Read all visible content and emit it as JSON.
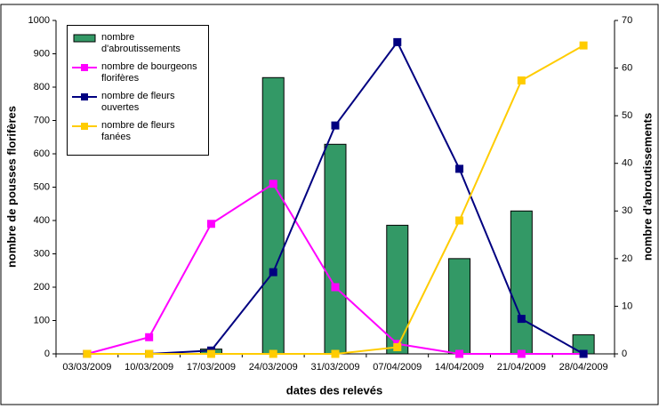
{
  "chart_data": {
    "type": "bar",
    "categories": [
      "03/03/2009",
      "10/03/2009",
      "17/03/2009",
      "24/03/2009",
      "31/03/2009",
      "07/04/2009",
      "14/04/2009",
      "21/04/2009",
      "28/04/2009"
    ],
    "x_label": "dates des relevés",
    "y_label": "nombre de pousses florifères",
    "y2_label": "nombre d'abroutissements",
    "ylim": [
      0,
      1000
    ],
    "yticks": [
      0,
      100,
      200,
      300,
      400,
      500,
      600,
      700,
      800,
      900,
      1000
    ],
    "y2lim": [
      0,
      70
    ],
    "y2ticks": [
      0,
      10,
      20,
      30,
      40,
      50,
      60,
      70
    ],
    "series": [
      {
        "name": "nombre d'abroutissements",
        "type": "bar",
        "axis": "y2",
        "color": "#339966",
        "values": [
          0,
          0,
          1,
          58,
          44,
          27,
          20,
          30,
          4
        ]
      },
      {
        "name": "nombre de bourgeons florifères",
        "type": "line",
        "color": "#ff00ff",
        "values": [
          0,
          50,
          390,
          510,
          200,
          30,
          0,
          0,
          0
        ]
      },
      {
        "name": "nombre de fleurs ouvertes",
        "type": "line",
        "color": "#000080",
        "values": [
          0,
          0,
          10,
          245,
          685,
          935,
          555,
          105,
          0
        ]
      },
      {
        "name": "nombre de fleurs fanées",
        "type": "line",
        "color": "#ffcc00",
        "values": [
          0,
          0,
          0,
          0,
          0,
          20,
          400,
          820,
          925
        ]
      }
    ]
  }
}
